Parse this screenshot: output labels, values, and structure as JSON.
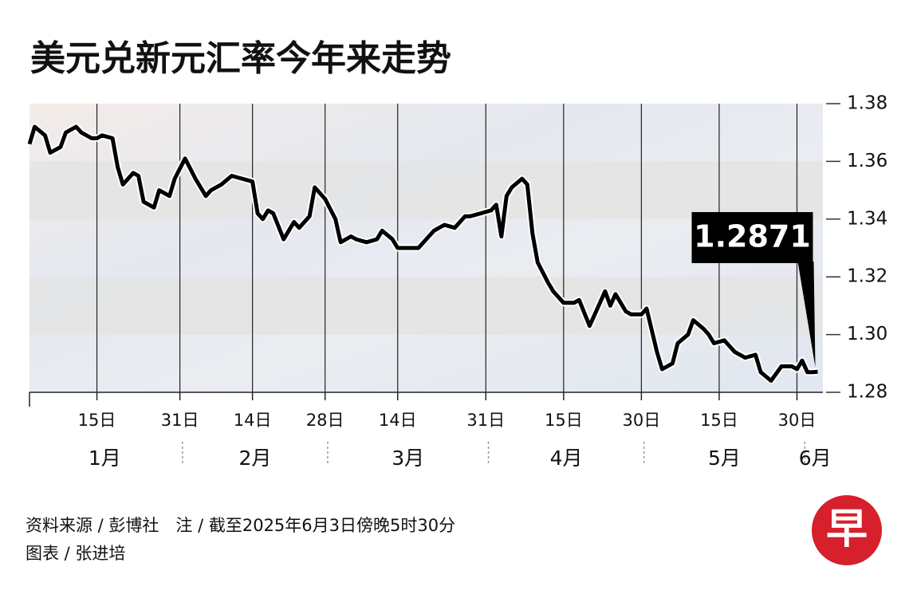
{
  "chart_data": {
    "type": "line",
    "title": "美元兑新元汇率今年来走势",
    "x": [
      2,
      3,
      5,
      6,
      8,
      9,
      11,
      12,
      14,
      15,
      16,
      18,
      19,
      20,
      22,
      23,
      24,
      26,
      27,
      29,
      30,
      32,
      34,
      36,
      37,
      39,
      41,
      43,
      45,
      46,
      47,
      48,
      49,
      51,
      52,
      53,
      54,
      56,
      57,
      59,
      61,
      62,
      64,
      65,
      67,
      69,
      70,
      72,
      73,
      75,
      77,
      79,
      80,
      82,
      84,
      86,
      87,
      89,
      91,
      92,
      93,
      94,
      95,
      97,
      98,
      99,
      100,
      102,
      103,
      105,
      107,
      108,
      110,
      111,
      113,
      114,
      115,
      117,
      118,
      120,
      121,
      123,
      124,
      126,
      127,
      129,
      130,
      132,
      133,
      134,
      136,
      138,
      140,
      142,
      143,
      145,
      147,
      149,
      150,
      151,
      152,
      153,
      154
    ],
    "series": [
      {
        "name": "美元兑新元",
        "color": "#000000",
        "values": [
          1.366,
          1.372,
          1.369,
          1.363,
          1.365,
          1.37,
          1.372,
          1.37,
          1.368,
          1.368,
          1.369,
          1.368,
          1.358,
          1.352,
          1.356,
          1.355,
          1.346,
          1.344,
          1.35,
          1.348,
          1.354,
          1.361,
          1.354,
          1.348,
          1.35,
          1.352,
          1.355,
          1.354,
          1.353,
          1.342,
          1.34,
          1.343,
          1.342,
          1.333,
          1.336,
          1.339,
          1.337,
          1.341,
          1.351,
          1.347,
          1.34,
          1.332,
          1.334,
          1.333,
          1.332,
          1.333,
          1.336,
          1.333,
          1.33,
          1.33,
          1.33,
          1.334,
          1.336,
          1.338,
          1.337,
          1.341,
          1.341,
          1.342,
          1.343,
          1.345,
          1.334,
          1.348,
          1.351,
          1.354,
          1.352,
          1.335,
          1.325,
          1.318,
          1.315,
          1.311,
          1.311,
          1.312,
          1.303,
          1.307,
          1.315,
          1.31,
          1.314,
          1.308,
          1.307,
          1.307,
          1.309,
          1.294,
          1.288,
          1.29,
          1.297,
          1.3,
          1.305,
          1.302,
          1.3,
          1.297,
          1.298,
          1.294,
          1.292,
          1.293,
          1.287,
          1.284,
          1.289,
          1.289,
          1.288,
          1.291,
          1.287,
          1.287,
          1.2871
        ]
      }
    ],
    "xlim": [
      2,
      155
    ],
    "xticks": [
      {
        "value": 15,
        "label": "15日"
      },
      {
        "value": 31,
        "label": "31日"
      },
      {
        "value": 45,
        "label": "14日"
      },
      {
        "value": 59,
        "label": "28日"
      },
      {
        "value": 73,
        "label": "14日"
      },
      {
        "value": 90,
        "label": "31日"
      },
      {
        "value": 105,
        "label": "15日"
      },
      {
        "value": 120,
        "label": "30日"
      },
      {
        "value": 135,
        "label": "15日"
      },
      {
        "value": 150,
        "label": "30日"
      }
    ],
    "months": [
      {
        "label": "1月",
        "start": 1,
        "end": 31
      },
      {
        "label": "2月",
        "start": 32,
        "end": 59
      },
      {
        "label": "3月",
        "start": 60,
        "end": 90
      },
      {
        "label": "4月",
        "start": 91,
        "end": 120
      },
      {
        "label": "5月",
        "start": 121,
        "end": 151
      },
      {
        "label": "6月",
        "start": 152,
        "end": 155
      }
    ],
    "ylim": [
      1.28,
      1.38
    ],
    "yticks": [
      1.28,
      {
        "value": 1.3,
        "label": "1.30"
      },
      1.32,
      1.34,
      1.36,
      1.38
    ],
    "grid": true,
    "annotations": [
      {
        "text": "1.2871"
      }
    ],
    "source": "资料来源 / 彭博社　注 / 截至2025年6月3日傍晚5时30分",
    "credit": "图表 / 张进培"
  }
}
